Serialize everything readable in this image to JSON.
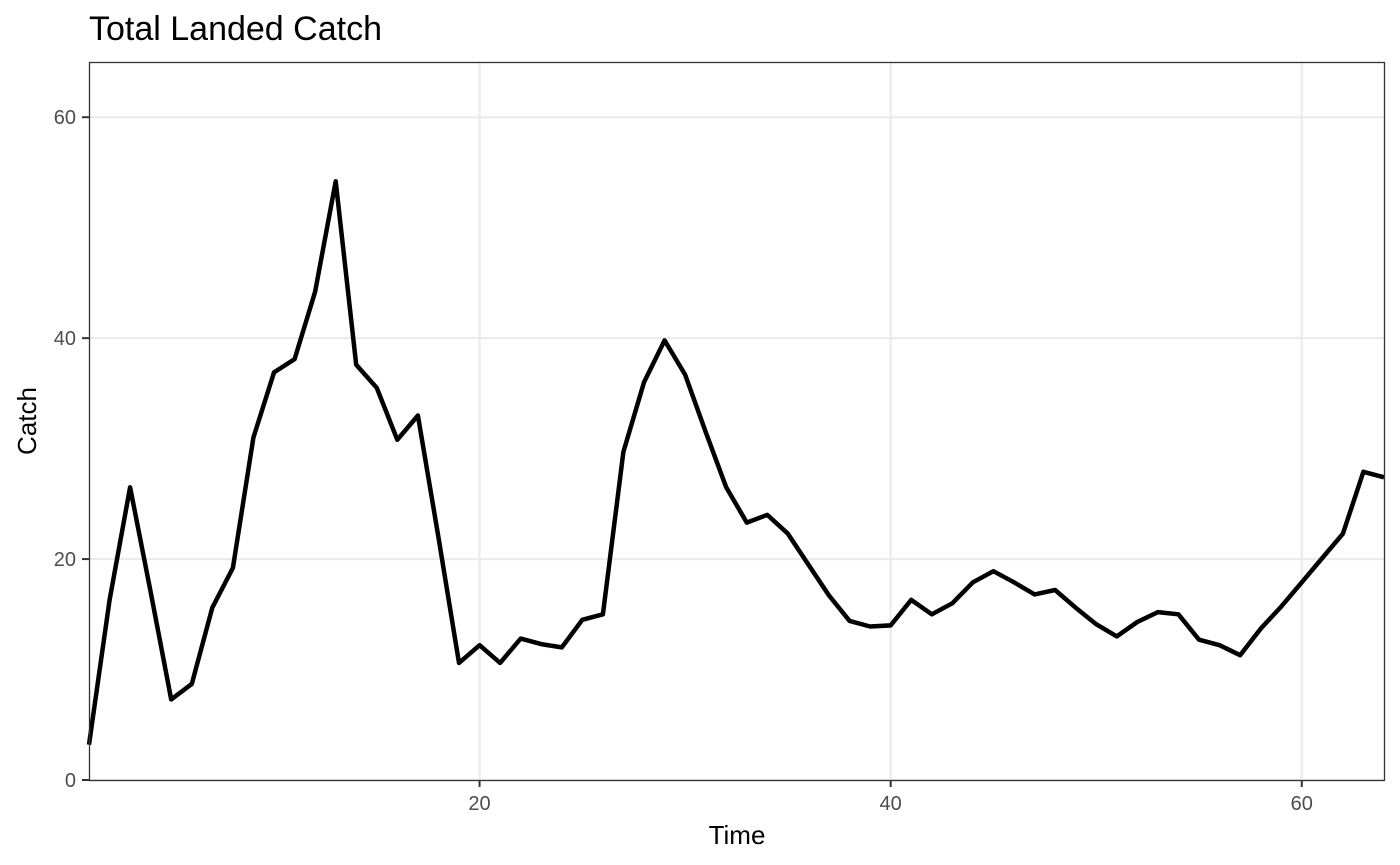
{
  "chart_data": {
    "type": "line",
    "title": "Total Landed Catch",
    "xlabel": "Time",
    "ylabel": "Catch",
    "xlim": [
      1,
      64
    ],
    "ylim": [
      0,
      65
    ],
    "xticks": [
      20,
      40,
      60
    ],
    "yticks": [
      0,
      20,
      40,
      60
    ],
    "grid": true,
    "series_color": "#000000",
    "series": [
      {
        "x": [
          1,
          2,
          3,
          4,
          5,
          6,
          7,
          8,
          9,
          10,
          11,
          12,
          13,
          14,
          15,
          16,
          17,
          18,
          19,
          20,
          21,
          22,
          23,
          24,
          25,
          26,
          27,
          28,
          29,
          30,
          31,
          32,
          33,
          34,
          35,
          36,
          37,
          38,
          39,
          40,
          41,
          42,
          43,
          44,
          45,
          46,
          47,
          48,
          49,
          50,
          51,
          52,
          53,
          54,
          55,
          56,
          57,
          58,
          59,
          60,
          61,
          62,
          63,
          64
        ],
        "values": [
          3.2,
          16.3,
          26.5,
          17.0,
          7.3,
          8.7,
          15.6,
          19.2,
          31.0,
          36.9,
          38.1,
          44.2,
          54.2,
          37.6,
          35.5,
          30.8,
          33.0,
          22.0,
          10.6,
          12.2,
          10.6,
          12.8,
          12.3,
          12.0,
          14.5,
          15.0,
          29.7,
          36.0,
          39.8,
          36.7,
          31.5,
          26.5,
          23.3,
          24.0,
          22.3,
          19.5,
          16.7,
          14.4,
          13.9,
          14.0,
          16.3,
          15.0,
          16.0,
          17.9,
          18.9,
          17.9,
          16.8,
          17.2,
          15.6,
          14.1,
          13.0,
          14.3,
          15.2,
          15.0,
          12.7,
          12.2,
          11.3,
          13.7,
          15.7,
          17.9,
          20.1,
          22.3,
          27.9,
          27.4
        ]
      }
    ]
  }
}
